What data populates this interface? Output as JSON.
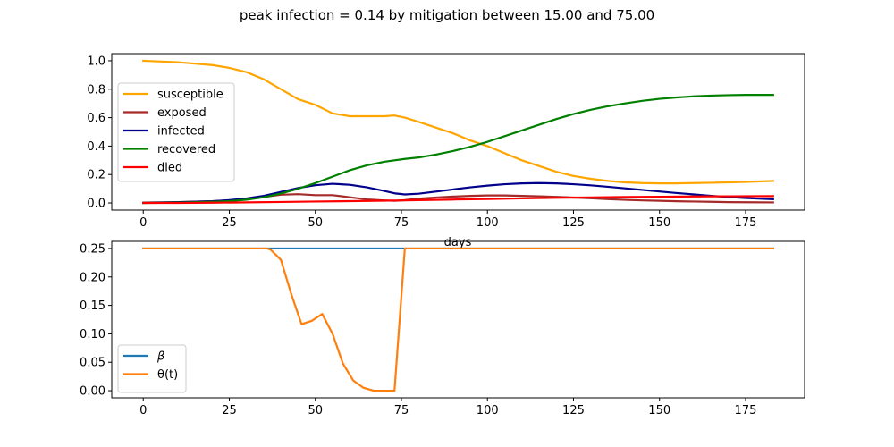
{
  "figure": {
    "suptitle": "peak infection = 0.14 by mitigation between 15.00 and 75.00"
  },
  "chart_data": [
    {
      "type": "line",
      "xlabel": "days",
      "ylabel": "",
      "xlim": [
        -9.15,
        192.15
      ],
      "ylim": [
        -0.05,
        1.05
      ],
      "xticks": [
        0,
        25,
        50,
        75,
        100,
        125,
        150,
        175
      ],
      "yticks": [
        0.0,
        0.2,
        0.4,
        0.6,
        0.8,
        1.0
      ],
      "xtick_labels": [
        "0",
        "25",
        "50",
        "75",
        "100",
        "125",
        "150",
        "175"
      ],
      "ytick_labels": [
        "0.0",
        "0.2",
        "0.4",
        "0.6",
        "0.8",
        "1.0"
      ],
      "legend_position": "center-left",
      "grid": false,
      "series": [
        {
          "name": "susceptible",
          "color": "#FFA500",
          "x": [
            0,
            10,
            20,
            25,
            30,
            35,
            40,
            45,
            50,
            55,
            60,
            65,
            70,
            73,
            76,
            80,
            85,
            90,
            95,
            100,
            105,
            110,
            115,
            120,
            125,
            130,
            135,
            140,
            145,
            150,
            155,
            160,
            165,
            170,
            175,
            183
          ],
          "y": [
            1.0,
            0.99,
            0.97,
            0.95,
            0.92,
            0.87,
            0.8,
            0.73,
            0.69,
            0.63,
            0.61,
            0.61,
            0.61,
            0.615,
            0.6,
            0.57,
            0.53,
            0.49,
            0.44,
            0.4,
            0.35,
            0.3,
            0.26,
            0.22,
            0.19,
            0.17,
            0.155,
            0.145,
            0.14,
            0.138,
            0.138,
            0.14,
            0.142,
            0.145,
            0.148,
            0.155
          ]
        },
        {
          "name": "exposed",
          "color": "#A52A2A",
          "x": [
            0,
            10,
            20,
            25,
            30,
            35,
            40,
            45,
            50,
            55,
            60,
            65,
            70,
            73,
            76,
            80,
            85,
            90,
            95,
            100,
            105,
            110,
            115,
            120,
            125,
            130,
            135,
            140,
            145,
            150,
            155,
            160,
            165,
            170,
            175,
            183
          ],
          "y": [
            0.003,
            0.006,
            0.012,
            0.018,
            0.028,
            0.042,
            0.058,
            0.062,
            0.055,
            0.055,
            0.04,
            0.025,
            0.018,
            0.015,
            0.02,
            0.03,
            0.038,
            0.045,
            0.05,
            0.053,
            0.053,
            0.05,
            0.047,
            0.043,
            0.038,
            0.033,
            0.027,
            0.022,
            0.018,
            0.015,
            0.012,
            0.01,
            0.008,
            0.006,
            0.005,
            0.004
          ]
        },
        {
          "name": "infected",
          "color": "#00008B",
          "x": [
            0,
            10,
            20,
            25,
            30,
            35,
            40,
            45,
            50,
            55,
            60,
            65,
            70,
            73,
            76,
            80,
            85,
            90,
            95,
            100,
            105,
            110,
            115,
            120,
            125,
            130,
            135,
            140,
            145,
            150,
            155,
            160,
            165,
            170,
            175,
            183
          ],
          "y": [
            0.0,
            0.005,
            0.012,
            0.02,
            0.032,
            0.05,
            0.078,
            0.105,
            0.125,
            0.135,
            0.128,
            0.11,
            0.085,
            0.068,
            0.06,
            0.065,
            0.08,
            0.095,
            0.11,
            0.122,
            0.132,
            0.138,
            0.14,
            0.138,
            0.132,
            0.124,
            0.114,
            0.103,
            0.092,
            0.081,
            0.07,
            0.06,
            0.05,
            0.042,
            0.035,
            0.026
          ]
        },
        {
          "name": "recovered",
          "color": "#008000",
          "x": [
            0,
            10,
            20,
            25,
            30,
            35,
            40,
            45,
            50,
            55,
            60,
            65,
            70,
            73,
            76,
            80,
            85,
            90,
            95,
            100,
            105,
            110,
            115,
            120,
            125,
            130,
            135,
            140,
            145,
            150,
            155,
            160,
            165,
            170,
            175,
            183
          ],
          "y": [
            0.0,
            0.002,
            0.008,
            0.013,
            0.023,
            0.04,
            0.067,
            0.1,
            0.14,
            0.185,
            0.23,
            0.265,
            0.29,
            0.3,
            0.31,
            0.32,
            0.34,
            0.365,
            0.395,
            0.43,
            0.47,
            0.51,
            0.55,
            0.59,
            0.625,
            0.655,
            0.68,
            0.7,
            0.718,
            0.732,
            0.742,
            0.75,
            0.755,
            0.758,
            0.76,
            0.76
          ]
        },
        {
          "name": "died",
          "color": "#FF0000",
          "x": [
            0,
            10,
            20,
            30,
            40,
            50,
            60,
            70,
            76,
            80,
            90,
            100,
            110,
            120,
            130,
            140,
            150,
            160,
            170,
            183
          ],
          "y": [
            0.0,
            0.0,
            0.002,
            0.004,
            0.007,
            0.01,
            0.013,
            0.016,
            0.018,
            0.02,
            0.024,
            0.028,
            0.032,
            0.036,
            0.039,
            0.042,
            0.044,
            0.046,
            0.047,
            0.048
          ]
        }
      ]
    },
    {
      "type": "line",
      "xlabel": "",
      "ylabel": "",
      "xlim": [
        -9.15,
        192.15
      ],
      "ylim": [
        -0.0125,
        0.2625
      ],
      "xticks": [
        0,
        25,
        50,
        75,
        100,
        125,
        150,
        175
      ],
      "yticks": [
        0.0,
        0.05,
        0.1,
        0.15,
        0.2,
        0.25
      ],
      "xtick_labels": [
        "0",
        "25",
        "50",
        "75",
        "100",
        "125",
        "150",
        "175"
      ],
      "ytick_labels": [
        "0.00",
        "0.05",
        "0.10",
        "0.15",
        "0.20",
        "0.25"
      ],
      "legend_position": "lower-left",
      "grid": false,
      "series": [
        {
          "name": "β",
          "color": "#1F77B4",
          "x": [
            0,
            183
          ],
          "y": [
            0.25,
            0.25
          ]
        },
        {
          "name": "θ(t)",
          "color": "#FF7F0E",
          "x": [
            0,
            36,
            37,
            40,
            43,
            46,
            49,
            52,
            55,
            58,
            61,
            64,
            67,
            70,
            73,
            76,
            77,
            183
          ],
          "y": [
            0.25,
            0.25,
            0.248,
            0.23,
            0.17,
            0.117,
            0.123,
            0.135,
            0.1,
            0.048,
            0.018,
            0.005,
            0.0,
            0.0,
            0.0,
            0.25,
            0.25,
            0.25
          ]
        }
      ]
    }
  ]
}
